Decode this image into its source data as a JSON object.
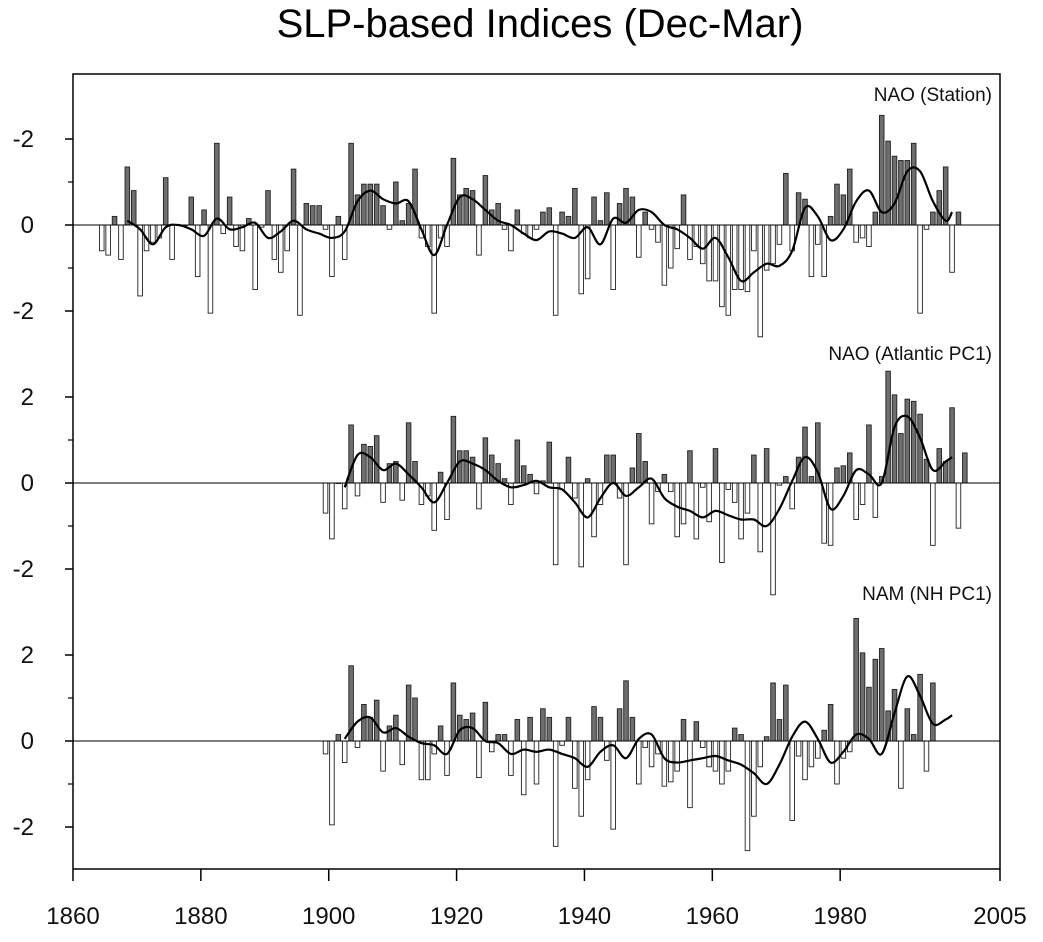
{
  "title": "SLP-based Indices (Dec-Mar)",
  "chart_data": {
    "type": "bar",
    "title": "SLP-based Indices (Dec-Mar)",
    "xlabel": "",
    "ylabel": "",
    "xlim": [
      1860,
      2005
    ],
    "x_ticks": [
      "1860",
      "1880",
      "1900",
      "1920",
      "1940",
      "1960",
      "1980",
      "2005"
    ],
    "grid": false,
    "colors": {
      "positive": "#6e6e6e",
      "negative": "#ffffff",
      "outline": "#222222",
      "line": "#000000"
    },
    "panels": [
      {
        "label": "NAO (Station)",
        "y_ticks": [
          "-2",
          "0",
          "-2"
        ],
        "start_year": 1864,
        "values": [
          -0.6,
          -0.7,
          0.2,
          -0.8,
          1.35,
          0.8,
          -1.65,
          -0.6,
          -0.4,
          -0.3,
          1.1,
          -0.8,
          0.0,
          0.0,
          0.65,
          -1.2,
          0.35,
          -2.05,
          1.9,
          -0.2,
          0.65,
          -0.5,
          -0.6,
          0.15,
          -1.5,
          -0.05,
          0.8,
          -0.8,
          -1.1,
          -0.6,
          1.3,
          -2.1,
          0.5,
          0.45,
          0.45,
          -0.1,
          -1.2,
          0.2,
          -0.8,
          1.9,
          0.7,
          0.95,
          0.95,
          0.95,
          0.45,
          -0.1,
          1.0,
          0.1,
          0.5,
          1.3,
          -0.3,
          -0.5,
          -2.05,
          -0.3,
          -0.5,
          1.55,
          0.7,
          0.85,
          0.8,
          -0.7,
          1.15,
          0.35,
          0.5,
          -0.1,
          -0.6,
          0.35,
          -0.2,
          -0.3,
          -0.1,
          0.3,
          0.4,
          -2.1,
          0.3,
          0.2,
          0.85,
          -1.6,
          -1.25,
          0.65,
          0.1,
          0.75,
          -1.5,
          0.5,
          0.85,
          0.65,
          -0.75,
          0.3,
          -0.1,
          -0.4,
          -1.4,
          -1.0,
          -0.55,
          0.7,
          -0.8,
          -0.5,
          -0.9,
          -1.3,
          -1.3,
          -1.9,
          -2.1,
          -1.5,
          -1.5,
          -1.55,
          -0.6,
          -2.6,
          -1.05,
          -0.9,
          -0.45,
          1.2,
          -0.6,
          0.75,
          0.6,
          -1.2,
          -0.45,
          -1.2,
          0.2,
          0.95,
          0.7,
          1.3,
          -0.4,
          -0.3,
          -0.5,
          0.3,
          2.55,
          1.95,
          1.6,
          1.5,
          1.5,
          1.9,
          -2.05,
          -0.1,
          0.3,
          0.8,
          1.35,
          -1.1,
          0.3
        ],
        "smooth": [
          [
            1868,
            0.1
          ],
          [
            1870,
            -0.1
          ],
          [
            1872,
            -0.45
          ],
          [
            1874,
            -0.05
          ],
          [
            1876,
            0.0
          ],
          [
            1878,
            -0.1
          ],
          [
            1880,
            -0.25
          ],
          [
            1882,
            0.15
          ],
          [
            1884,
            -0.1
          ],
          [
            1886,
            -0.05
          ],
          [
            1888,
            0.05
          ],
          [
            1890,
            -0.3
          ],
          [
            1892,
            -0.15
          ],
          [
            1894,
            0.1
          ],
          [
            1896,
            -0.1
          ],
          [
            1898,
            -0.2
          ],
          [
            1900,
            -0.3
          ],
          [
            1902,
            -0.15
          ],
          [
            1904,
            0.55
          ],
          [
            1906,
            0.8
          ],
          [
            1908,
            0.6
          ],
          [
            1910,
            0.5
          ],
          [
            1912,
            0.55
          ],
          [
            1914,
            -0.1
          ],
          [
            1916,
            -0.7
          ],
          [
            1918,
            0.0
          ],
          [
            1920,
            0.65
          ],
          [
            1922,
            0.6
          ],
          [
            1924,
            0.35
          ],
          [
            1926,
            0.1
          ],
          [
            1928,
            0.0
          ],
          [
            1930,
            -0.2
          ],
          [
            1932,
            -0.35
          ],
          [
            1934,
            -0.15
          ],
          [
            1936,
            -0.2
          ],
          [
            1938,
            -0.3
          ],
          [
            1940,
            -0.05
          ],
          [
            1942,
            -0.45
          ],
          [
            1944,
            0.15
          ],
          [
            1946,
            0.05
          ],
          [
            1948,
            0.35
          ],
          [
            1950,
            0.3
          ],
          [
            1952,
            0.0
          ],
          [
            1954,
            -0.1
          ],
          [
            1956,
            -0.3
          ],
          [
            1958,
            -0.55
          ],
          [
            1960,
            -0.3
          ],
          [
            1962,
            -0.75
          ],
          [
            1964,
            -1.3
          ],
          [
            1966,
            -1.1
          ],
          [
            1968,
            -0.9
          ],
          [
            1970,
            -0.95
          ],
          [
            1972,
            -0.6
          ],
          [
            1974,
            0.4
          ],
          [
            1976,
            0.2
          ],
          [
            1978,
            -0.35
          ],
          [
            1980,
            -0.1
          ],
          [
            1982,
            0.55
          ],
          [
            1984,
            0.8
          ],
          [
            1986,
            0.3
          ],
          [
            1988,
            0.5
          ],
          [
            1990,
            1.25
          ],
          [
            1992,
            1.25
          ],
          [
            1994,
            0.55
          ],
          [
            1996,
            0.1
          ],
          [
            1997,
            0.3
          ]
        ]
      },
      {
        "label": "NAO (Atlantic PC1)",
        "y_ticks": [
          "2",
          "0",
          "-2"
        ],
        "start_year": 1899,
        "values": [
          -0.7,
          -1.3,
          0.0,
          -0.6,
          1.35,
          -0.3,
          0.9,
          0.85,
          1.1,
          -0.45,
          0.45,
          0.5,
          -0.4,
          1.4,
          0.5,
          -0.5,
          -0.3,
          -1.1,
          0.25,
          -0.85,
          1.55,
          0.75,
          0.75,
          0.6,
          -0.6,
          1.05,
          0.65,
          0.45,
          0.1,
          -0.5,
          1.0,
          0.4,
          0.2,
          -0.25,
          0.05,
          0.95,
          -1.9,
          -0.15,
          0.6,
          -0.35,
          -1.95,
          0.1,
          -1.25,
          -0.5,
          0.65,
          0.65,
          -0.35,
          -1.9,
          0.35,
          1.15,
          0.5,
          -0.95,
          -0.2,
          0.2,
          -0.2,
          -1.25,
          -0.95,
          0.75,
          -1.3,
          -0.1,
          -0.9,
          0.8,
          -1.85,
          -0.15,
          -0.45,
          -1.3,
          -0.7,
          0.65,
          -1.6,
          0.8,
          -2.6,
          -0.05,
          0.15,
          -0.6,
          0.6,
          1.3,
          0.15,
          1.4,
          -1.4,
          -1.45,
          0.35,
          0.4,
          0.7,
          -0.85,
          -0.5,
          1.35,
          -0.8,
          0.15,
          2.6,
          2.05,
          1.15,
          1.95,
          1.9,
          1.6,
          0.55,
          -1.45,
          0.8,
          0.5,
          1.75,
          -1.05,
          0.7
        ],
        "smooth": [
          [
            1902,
            -0.1
          ],
          [
            1904,
            0.65
          ],
          [
            1906,
            0.6
          ],
          [
            1908,
            0.3
          ],
          [
            1910,
            0.45
          ],
          [
            1912,
            0.2
          ],
          [
            1914,
            -0.1
          ],
          [
            1916,
            -0.45
          ],
          [
            1918,
            0.0
          ],
          [
            1920,
            0.5
          ],
          [
            1922,
            0.45
          ],
          [
            1924,
            0.3
          ],
          [
            1926,
            0.05
          ],
          [
            1928,
            -0.1
          ],
          [
            1930,
            -0.05
          ],
          [
            1932,
            0.05
          ],
          [
            1934,
            -0.1
          ],
          [
            1936,
            -0.15
          ],
          [
            1938,
            -0.45
          ],
          [
            1940,
            -0.8
          ],
          [
            1942,
            -0.35
          ],
          [
            1944,
            0.0
          ],
          [
            1946,
            -0.3
          ],
          [
            1948,
            -0.1
          ],
          [
            1950,
            0.1
          ],
          [
            1952,
            -0.35
          ],
          [
            1954,
            -0.55
          ],
          [
            1956,
            -0.65
          ],
          [
            1958,
            -0.8
          ],
          [
            1960,
            -0.65
          ],
          [
            1962,
            -0.75
          ],
          [
            1964,
            -0.85
          ],
          [
            1966,
            -0.85
          ],
          [
            1968,
            -1.0
          ],
          [
            1970,
            -0.6
          ],
          [
            1972,
            0.05
          ],
          [
            1974,
            0.6
          ],
          [
            1976,
            0.25
          ],
          [
            1978,
            -0.6
          ],
          [
            1980,
            -0.3
          ],
          [
            1982,
            0.3
          ],
          [
            1984,
            0.2
          ],
          [
            1986,
            0.0
          ],
          [
            1988,
            1.3
          ],
          [
            1990,
            1.55
          ],
          [
            1992,
            1.05
          ],
          [
            1994,
            0.3
          ],
          [
            1996,
            0.5
          ],
          [
            1997,
            0.6
          ]
        ]
      },
      {
        "label": "NAM (NH PC1)",
        "y_ticks": [
          "2",
          "0",
          "-2"
        ],
        "start_year": 1899,
        "values": [
          -0.3,
          -1.95,
          0.15,
          -0.5,
          1.75,
          -0.15,
          0.85,
          0.55,
          0.95,
          -0.7,
          0.35,
          0.6,
          -0.55,
          1.3,
          1.0,
          -0.9,
          -0.9,
          -0.3,
          0.35,
          -0.8,
          1.35,
          0.6,
          0.5,
          0.65,
          -0.85,
          0.9,
          -0.25,
          0.15,
          0.15,
          -0.8,
          0.5,
          -1.25,
          0.55,
          -1.0,
          0.75,
          0.55,
          -2.45,
          -0.1,
          0.55,
          -1.1,
          -1.75,
          -0.9,
          0.8,
          0.55,
          -0.45,
          -2.05,
          0.75,
          1.4,
          0.55,
          -1.0,
          -0.15,
          -0.6,
          -0.3,
          -1.05,
          -0.95,
          -0.7,
          0.5,
          -1.55,
          0.45,
          -0.15,
          -0.6,
          -0.7,
          -1.0,
          -0.7,
          0.3,
          0.15,
          -2.55,
          -1.75,
          -0.6,
          0.1,
          1.35,
          0.5,
          1.3,
          -1.85,
          -0.35,
          -0.9,
          -0.6,
          -0.4,
          0.25,
          0.85,
          -1.0,
          -0.4,
          -0.25,
          2.85,
          2.05,
          1.25,
          1.9,
          2.15,
          0.7,
          1.2,
          -1.1,
          0.75,
          0.15,
          1.55,
          -0.7,
          1.35
        ],
        "smooth": [
          [
            1902,
            0.05
          ],
          [
            1904,
            0.45
          ],
          [
            1906,
            0.55
          ],
          [
            1908,
            0.2
          ],
          [
            1910,
            0.3
          ],
          [
            1912,
            0.1
          ],
          [
            1914,
            -0.05
          ],
          [
            1916,
            -0.1
          ],
          [
            1918,
            -0.3
          ],
          [
            1920,
            0.25
          ],
          [
            1922,
            0.3
          ],
          [
            1924,
            0.0
          ],
          [
            1926,
            -0.05
          ],
          [
            1928,
            -0.3
          ],
          [
            1930,
            -0.2
          ],
          [
            1932,
            -0.25
          ],
          [
            1934,
            -0.2
          ],
          [
            1936,
            -0.3
          ],
          [
            1938,
            -0.4
          ],
          [
            1940,
            -0.6
          ],
          [
            1942,
            -0.25
          ],
          [
            1944,
            -0.1
          ],
          [
            1946,
            -0.4
          ],
          [
            1948,
            0.05
          ],
          [
            1950,
            0.15
          ],
          [
            1952,
            -0.4
          ],
          [
            1954,
            -0.5
          ],
          [
            1956,
            -0.45
          ],
          [
            1958,
            -0.4
          ],
          [
            1960,
            -0.35
          ],
          [
            1962,
            -0.45
          ],
          [
            1964,
            -0.55
          ],
          [
            1966,
            -0.75
          ],
          [
            1968,
            -1.0
          ],
          [
            1970,
            -0.55
          ],
          [
            1972,
            0.1
          ],
          [
            1974,
            0.45
          ],
          [
            1976,
            0.05
          ],
          [
            1978,
            -0.5
          ],
          [
            1980,
            -0.25
          ],
          [
            1982,
            0.15
          ],
          [
            1984,
            0.05
          ],
          [
            1986,
            -0.3
          ],
          [
            1988,
            0.65
          ],
          [
            1990,
            1.5
          ],
          [
            1992,
            1.05
          ],
          [
            1994,
            0.4
          ],
          [
            1996,
            0.5
          ],
          [
            1997,
            0.6
          ]
        ]
      }
    ]
  }
}
